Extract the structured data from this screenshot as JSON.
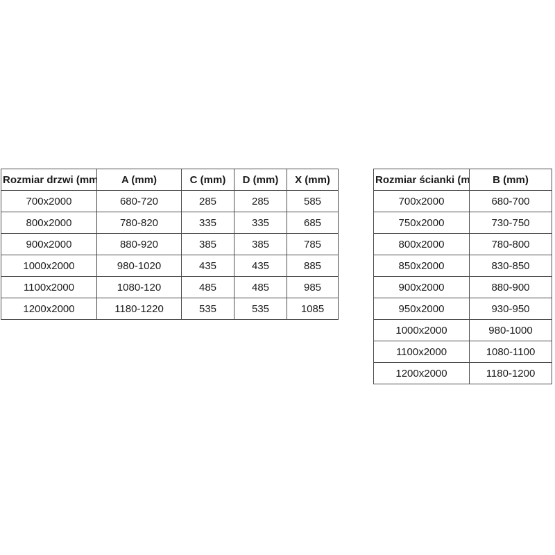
{
  "colors": {
    "background": "#ffffff",
    "table_border": "#4a4a4a",
    "text": "#1a1a1a"
  },
  "tables": [
    {
      "name": "door-sizes",
      "headers": [
        "Rozmiar drzwi (mm)",
        "A (mm)",
        "C (mm)",
        "D (mm)",
        "X (mm)"
      ],
      "rows": [
        [
          "700x2000",
          "680-720",
          "285",
          "285",
          "585"
        ],
        [
          "800x2000",
          "780-820",
          "335",
          "335",
          "685"
        ],
        [
          "900x2000",
          "880-920",
          "385",
          "385",
          "785"
        ],
        [
          "1000x2000",
          "980-1020",
          "435",
          "435",
          "885"
        ],
        [
          "1100x2000",
          "1080-120",
          "485",
          "485",
          "985"
        ],
        [
          "1200x2000",
          "1180-1220",
          "535",
          "535",
          "1085"
        ]
      ]
    },
    {
      "name": "wall-panel-sizes",
      "headers": [
        "Rozmiar ścianki (mm)",
        "B (mm)"
      ],
      "rows": [
        [
          "700x2000",
          "680-700"
        ],
        [
          "750x2000",
          "730-750"
        ],
        [
          "800x2000",
          "780-800"
        ],
        [
          "850x2000",
          "830-850"
        ],
        [
          "900x2000",
          "880-900"
        ],
        [
          "950x2000",
          "930-950"
        ],
        [
          "1000x2000",
          "980-1000"
        ],
        [
          "1100x2000",
          "1080-1100"
        ],
        [
          "1200x2000",
          "1180-1200"
        ]
      ]
    }
  ]
}
